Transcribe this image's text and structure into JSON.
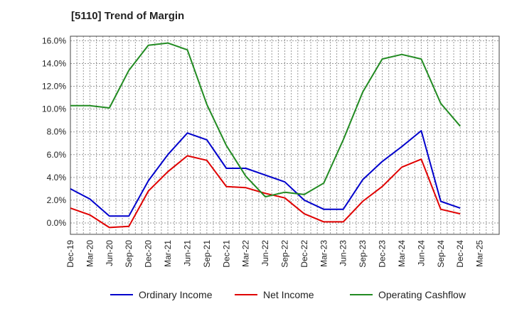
{
  "chart_data": {
    "type": "line",
    "title": "[5110]  Trend of Margin",
    "categories": [
      "Dec-19",
      "Mar-20",
      "Jun-20",
      "Sep-20",
      "Dec-20",
      "Mar-21",
      "Jun-21",
      "Sep-21",
      "Dec-21",
      "Mar-22",
      "Jun-22",
      "Sep-22",
      "Dec-22",
      "Mar-23",
      "Jun-23",
      "Sep-23",
      "Dec-23",
      "Mar-24",
      "Jun-24",
      "Sep-24",
      "Dec-24",
      "Mar-25"
    ],
    "y_ticks": [
      "0.0%",
      "2.0%",
      "4.0%",
      "6.0%",
      "8.0%",
      "10.0%",
      "12.0%",
      "14.0%",
      "16.0%"
    ],
    "ylim": [
      -1.0,
      16.4
    ],
    "grid": true,
    "legend_position": "bottom",
    "series": [
      {
        "name": "Ordinary Income",
        "color": "#0000cc",
        "values": [
          3.0,
          2.1,
          0.6,
          0.6,
          3.7,
          6.0,
          7.9,
          7.3,
          4.8,
          4.8,
          4.2,
          3.6,
          2.0,
          1.2,
          1.2,
          3.8,
          5.4,
          6.7,
          8.1,
          1.9,
          1.3,
          null
        ]
      },
      {
        "name": "Net Income",
        "color": "#e00000",
        "values": [
          1.3,
          0.7,
          -0.4,
          -0.3,
          2.8,
          4.5,
          5.9,
          5.5,
          3.2,
          3.1,
          2.6,
          2.2,
          0.8,
          0.1,
          0.1,
          1.9,
          3.2,
          4.9,
          5.6,
          1.2,
          0.8,
          null
        ]
      },
      {
        "name": "Operating Cashflow",
        "color": "#228b22",
        "values": [
          10.3,
          10.3,
          10.1,
          13.4,
          15.6,
          15.8,
          15.2,
          10.4,
          6.8,
          4.1,
          2.3,
          2.7,
          2.5,
          3.5,
          7.3,
          11.5,
          14.4,
          14.8,
          14.4,
          10.5,
          8.5,
          null
        ]
      }
    ]
  }
}
